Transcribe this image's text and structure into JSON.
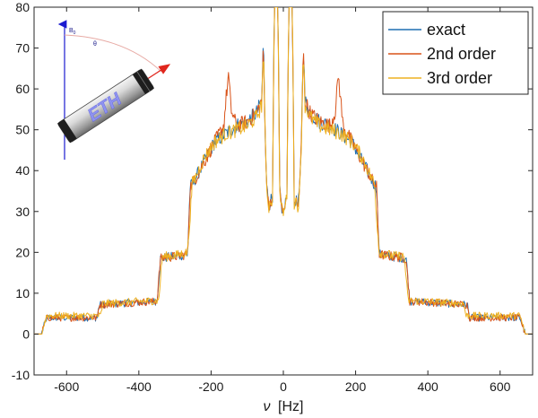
{
  "chart_data": {
    "type": "line",
    "xlabel_symbol": "ν",
    "xlabel_unit": "[Hz]",
    "ylabel": "",
    "title": "",
    "xlim": [
      -690,
      690
    ],
    "ylim": [
      -10,
      80
    ],
    "xticks": [
      -600,
      -400,
      -200,
      0,
      200,
      400,
      600
    ],
    "yticks": [
      -10,
      0,
      10,
      20,
      30,
      40,
      50,
      60,
      70,
      80
    ],
    "grid": false,
    "legend_position": "top-right",
    "series": [
      {
        "name": "exact",
        "color": "#1f6fb2",
        "x": [
          -690,
          -680,
          -670,
          -655,
          -640,
          -600,
          -550,
          -515,
          -510,
          -505,
          -450,
          -400,
          -350,
          -340,
          -335,
          -330,
          -300,
          -265,
          -258,
          -250,
          -220,
          -190,
          -160,
          -130,
          -100,
          -75,
          -60,
          -55,
          -50,
          -45,
          -40,
          -35,
          -30,
          -25,
          -20,
          -15,
          -10,
          -6,
          -3,
          0,
          3,
          6,
          10,
          15,
          20,
          25,
          30,
          35,
          40,
          45,
          50,
          55,
          60,
          75,
          100,
          130,
          160,
          190,
          220,
          250,
          258,
          265,
          300,
          330,
          335,
          340,
          350,
          400,
          450,
          505,
          510,
          515,
          550,
          600,
          640,
          655,
          670,
          680,
          690
        ],
        "y": [
          0,
          0,
          0,
          4,
          4,
          4,
          4,
          4,
          7,
          7.2,
          7.5,
          7.8,
          8,
          18.5,
          18.5,
          18.7,
          19,
          19.5,
          36,
          37,
          42,
          47,
          49,
          51,
          52,
          54,
          57,
          72,
          48,
          35,
          31,
          33,
          32,
          80,
          80,
          80,
          35,
          32,
          30,
          30,
          30,
          32,
          35,
          80,
          80,
          80,
          32,
          33,
          31,
          35,
          48,
          72,
          57,
          54,
          52,
          51,
          49,
          47,
          42,
          37,
          36,
          19.5,
          19,
          18.7,
          18.5,
          18.5,
          8,
          7.8,
          7.5,
          7.2,
          7,
          4,
          4,
          4,
          4,
          4,
          0,
          0,
          0
        ]
      },
      {
        "name": "2nd order",
        "color": "#d95319",
        "x": [
          -690,
          -680,
          -670,
          -655,
          -640,
          -600,
          -550,
          -515,
          -510,
          -505,
          -450,
          -400,
          -350,
          -340,
          -335,
          -330,
          -300,
          -265,
          -258,
          -250,
          -220,
          -190,
          -165,
          -158,
          -152,
          -145,
          -130,
          -100,
          -75,
          -60,
          -55,
          -50,
          -45,
          -40,
          -35,
          -30,
          -25,
          -20,
          -15,
          -10,
          -6,
          -3,
          0,
          3,
          6,
          10,
          15,
          20,
          25,
          30,
          35,
          40,
          45,
          50,
          55,
          60,
          75,
          100,
          130,
          145,
          152,
          158,
          165,
          190,
          220,
          250,
          258,
          265,
          300,
          330,
          335,
          340,
          350,
          400,
          450,
          505,
          510,
          515,
          550,
          600,
          640,
          655,
          670,
          680,
          690
        ],
        "y": [
          0,
          0,
          0,
          4,
          4,
          4,
          4,
          4,
          7,
          7.2,
          7.5,
          7.8,
          8,
          18.5,
          18.5,
          18.7,
          19,
          19.5,
          36,
          37,
          42,
          47,
          51,
          58,
          63.5,
          55,
          51,
          52,
          54,
          57,
          70,
          47,
          35,
          31,
          33,
          32,
          80,
          80,
          80,
          35,
          32,
          30,
          30,
          30,
          32,
          35,
          80,
          80,
          80,
          32,
          33,
          31,
          35,
          47,
          70,
          57,
          54,
          52,
          51,
          55,
          63.5,
          58,
          51,
          47,
          42,
          37,
          36,
          19.5,
          19,
          18.7,
          18.5,
          18.5,
          8,
          7.8,
          7.5,
          7.2,
          7,
          4,
          4,
          4,
          4,
          4,
          0,
          0,
          0
        ]
      },
      {
        "name": "3rd order",
        "color": "#edb120",
        "x": [
          -690,
          -680,
          -670,
          -655,
          -640,
          -600,
          -550,
          -505,
          -500,
          -495,
          -450,
          -400,
          -345,
          -335,
          -330,
          -325,
          -300,
          -265,
          -252,
          -245,
          -220,
          -190,
          -160,
          -130,
          -100,
          -75,
          -60,
          -55,
          -50,
          -45,
          -40,
          -35,
          -30,
          -25,
          -20,
          -15,
          -10,
          -6,
          -3,
          0,
          3,
          6,
          10,
          15,
          20,
          25,
          30,
          35,
          40,
          45,
          50,
          55,
          60,
          75,
          100,
          130,
          160,
          190,
          220,
          245,
          252,
          265,
          300,
          325,
          330,
          335,
          345,
          400,
          450,
          495,
          500,
          505,
          550,
          600,
          640,
          655,
          670,
          680,
          690
        ],
        "y": [
          0,
          0,
          0,
          4.5,
          4.5,
          4.5,
          4.5,
          4.5,
          7.5,
          7.5,
          7.7,
          8,
          8.2,
          19,
          19,
          19,
          19.2,
          20,
          37,
          38,
          43,
          47,
          49,
          50,
          51,
          53,
          56,
          71,
          47,
          34,
          31,
          33,
          32,
          80,
          80,
          80,
          34,
          32,
          30,
          30,
          30,
          32,
          34,
          80,
          80,
          80,
          32,
          33,
          31,
          34,
          47,
          71,
          56,
          53,
          51,
          50,
          49,
          47,
          43,
          38,
          37,
          20,
          19.2,
          19,
          19,
          19,
          8.2,
          8,
          7.7,
          7.5,
          7.5,
          4.5,
          4.5,
          4.5,
          4.5,
          4.5,
          0,
          0,
          0
        ]
      }
    ]
  },
  "inset": {
    "field_label": "B",
    "field_subscript": "0",
    "angle_label": "θ",
    "rotor_text": "ETH"
  }
}
